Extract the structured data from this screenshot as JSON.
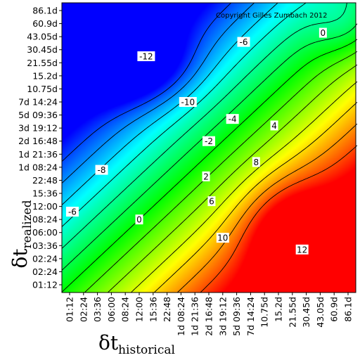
{
  "chart_data": {
    "type": "heatmap",
    "title": "",
    "copyright": "Copyright Gilles Zumbach 2012",
    "xlabel": {
      "main": "δt",
      "sub": "historical"
    },
    "ylabel": {
      "main": "δt",
      "sub": "realized"
    },
    "x_ticks": [
      "01:12",
      "02:24",
      "03:36",
      "06:00",
      "08:24",
      "12:00",
      "15:36",
      "22:48",
      "1d 08:24",
      "1d 21:36",
      "2d 16:48",
      "3d 19:12",
      "5d 09:36",
      "7d 14:24",
      "10.75d",
      "15.2d",
      "21.55d",
      "30.45d",
      "43.05d",
      "60.9d",
      "86.1d"
    ],
    "y_ticks": [
      "01:12",
      "02:24",
      "02:24",
      "03:36",
      "06:00",
      "08:24",
      "12:00",
      "15:36",
      "22:48",
      "1d 08:24",
      "1d 21:36",
      "2d 16:48",
      "3d 19:12",
      "5d 09:36",
      "7d 14:24",
      "10.75d",
      "15.2d",
      "21.55d",
      "30.45d",
      "43.05d",
      "60.9d",
      "86.1d"
    ],
    "color_range": [
      -14,
      14
    ],
    "colormap": [
      "#0000ff",
      "#00ffff",
      "#00ff00",
      "#ffff00",
      "#ff0000"
    ],
    "grid": false,
    "contour_labels": [
      {
        "text": "-12",
        "x": 5.5,
        "y": 17.5
      },
      {
        "text": "-10",
        "x": 8.5,
        "y": 14.0
      },
      {
        "text": "-8",
        "x": 2.3,
        "y": 8.8
      },
      {
        "text": "-6",
        "x": 0.2,
        "y": 5.6
      },
      {
        "text": "-6",
        "x": 12.5,
        "y": 18.6
      },
      {
        "text": "-4",
        "x": 11.7,
        "y": 12.7
      },
      {
        "text": "-2",
        "x": 10.0,
        "y": 11.0
      },
      {
        "text": "0",
        "x": 5.0,
        "y": 5.0
      },
      {
        "text": "0",
        "x": 18.2,
        "y": 19.3
      },
      {
        "text": "2",
        "x": 9.8,
        "y": 8.3
      },
      {
        "text": "4",
        "x": 14.7,
        "y": 12.2
      },
      {
        "text": "6",
        "x": 10.2,
        "y": 6.4
      },
      {
        "text": "8",
        "x": 13.4,
        "y": 9.4
      },
      {
        "text": "10",
        "x": 11.0,
        "y": 3.6
      },
      {
        "text": "12",
        "x": 16.7,
        "y": 2.7
      }
    ]
  }
}
